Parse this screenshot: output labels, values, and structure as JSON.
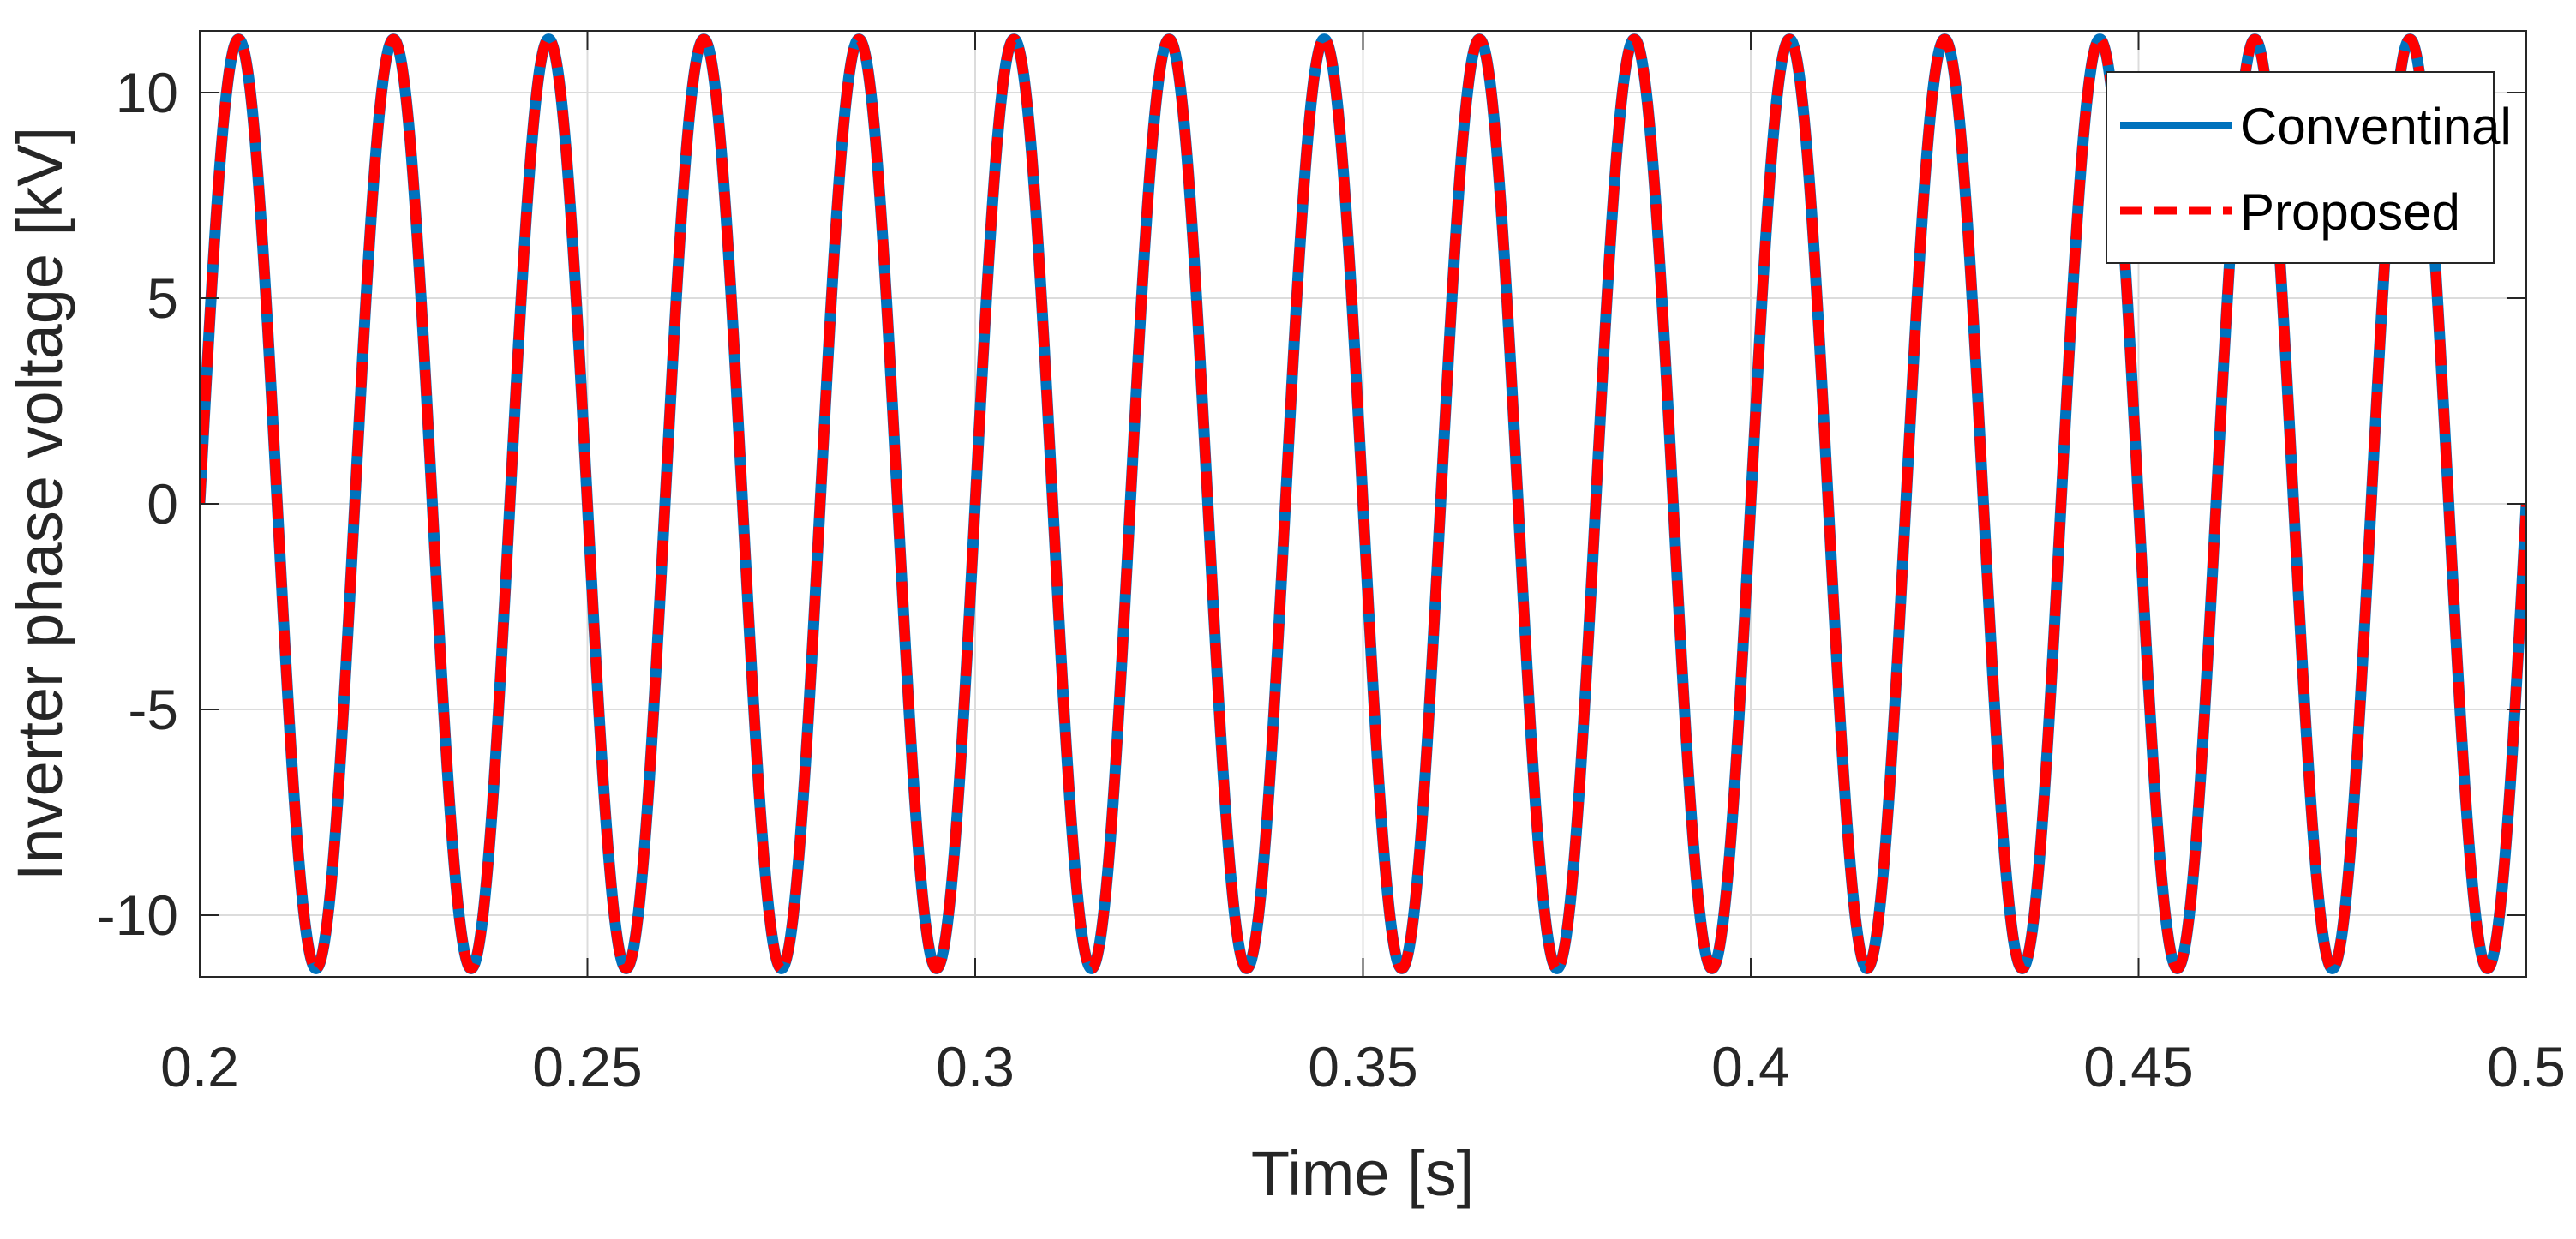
{
  "chart_data": {
    "type": "line",
    "xlabel": "Time [s]",
    "ylabel": "Inverter phase voltage [kV]",
    "xlim": [
      0.2,
      0.5
    ],
    "ylim": [
      -11.5,
      11.5
    ],
    "x_ticks": [
      0.2,
      0.25,
      0.3,
      0.35,
      0.4,
      0.45,
      0.5
    ],
    "x_tick_labels": [
      "0.2",
      "0.25",
      "0.3",
      "0.35",
      "0.4",
      "0.45",
      "0.5"
    ],
    "y_ticks": [
      -10,
      -5,
      0,
      5,
      10
    ],
    "y_tick_labels": [
      "-10",
      "-5",
      "0",
      "5",
      "10"
    ],
    "grid": true,
    "legend_position": "top-right",
    "waveform": {
      "shape": "sine",
      "amplitude_kV": 11.3,
      "frequency_Hz": 50,
      "phase_rad": 0,
      "peaks_clipped_at_kV": 11.5
    },
    "series": [
      {
        "name": "Conventinal",
        "color": "#0072BD",
        "style": "solid"
      },
      {
        "name": "Proposed",
        "color": "#FF0000",
        "style": "dashed"
      }
    ]
  }
}
